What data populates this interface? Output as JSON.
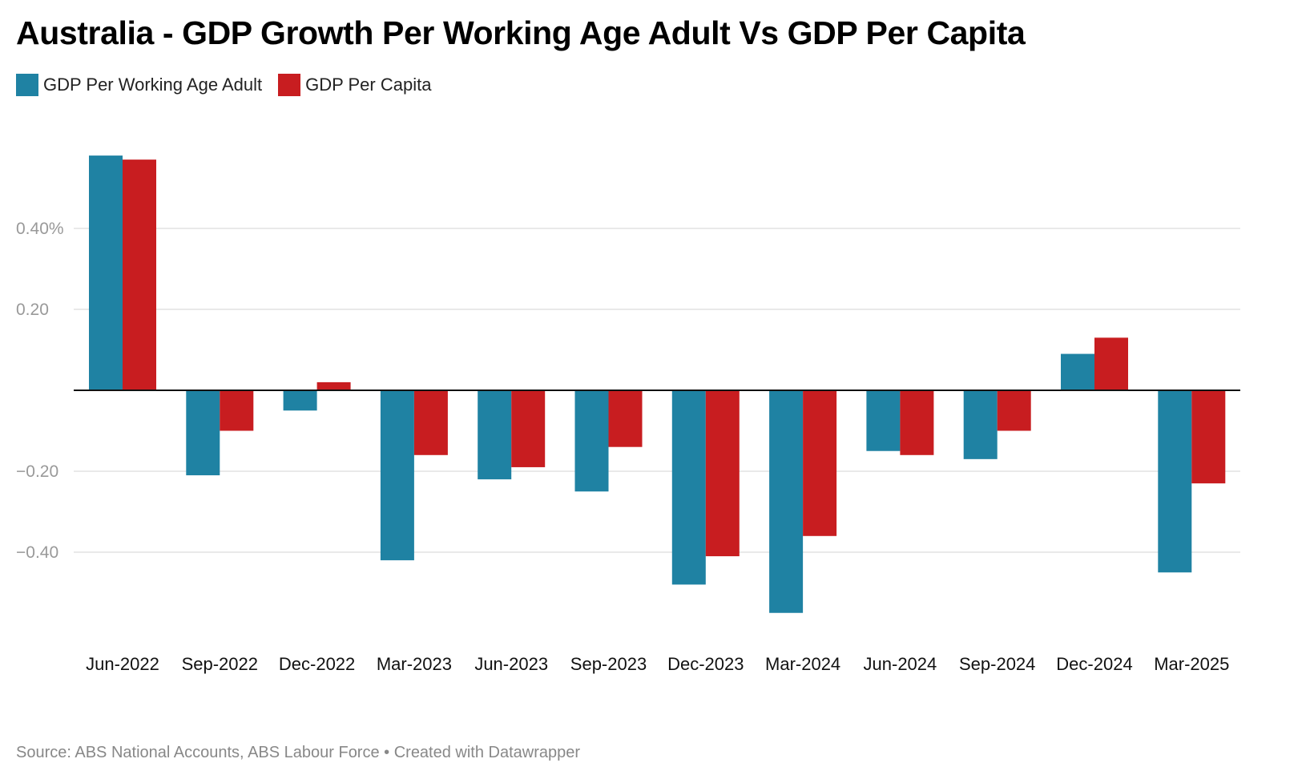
{
  "chart_data": {
    "type": "bar",
    "title": "Australia - GDP Growth Per Working Age Adult Vs GDP Per Capita",
    "xlabel": "",
    "ylabel": "",
    "categories": [
      "Jun-2022",
      "Sep-2022",
      "Dec-2022",
      "Mar-2023",
      "Jun-2023",
      "Sep-2023",
      "Dec-2023",
      "Mar-2024",
      "Jun-2024",
      "Sep-2024",
      "Dec-2024",
      "Mar-2025"
    ],
    "series": [
      {
        "name": "GDP Per Working Age Adult",
        "color": "#1f82a3",
        "values": [
          0.58,
          -0.21,
          -0.05,
          -0.42,
          -0.22,
          -0.25,
          -0.48,
          -0.55,
          -0.15,
          -0.17,
          0.09,
          -0.45
        ]
      },
      {
        "name": "GDP Per Capita",
        "color": "#c81d20",
        "values": [
          0.57,
          -0.1,
          0.02,
          -0.16,
          -0.19,
          -0.14,
          -0.41,
          -0.36,
          -0.16,
          -0.1,
          0.13,
          -0.23
        ]
      }
    ],
    "yticks": [
      {
        "value": 0.4,
        "label": "0.40%"
      },
      {
        "value": 0.2,
        "label": "0.20"
      },
      {
        "value": -0.2,
        "label": "−0.20"
      },
      {
        "value": -0.4,
        "label": "−0.40"
      }
    ],
    "ylim": [
      -0.6,
      0.6
    ],
    "grid": true,
    "legend_position": "top-left"
  },
  "footer": {
    "source": "Source: ABS National Accounts, ABS Labour Force • Created with Datawrapper"
  }
}
